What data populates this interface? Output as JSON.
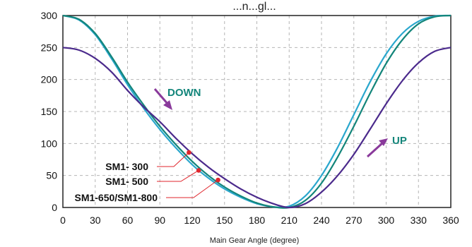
{
  "chart_data": {
    "type": "line",
    "title": "...n...gl...",
    "xlabel": "Main Gear Angle (degree)",
    "ylabel": "",
    "xlim": [
      0,
      360
    ],
    "ylim": [
      0,
      300
    ],
    "xticks": [
      0,
      30,
      60,
      90,
      120,
      150,
      180,
      210,
      240,
      270,
      300,
      330,
      360
    ],
    "yticks": [
      0,
      50,
      100,
      150,
      200,
      250,
      300
    ],
    "grid": true,
    "series": [
      {
        "name": "SM1- 300",
        "color": "#4b2a8c",
        "x": [
          0,
          15,
          30,
          45,
          60,
          75,
          90,
          105,
          120,
          135,
          150,
          165,
          180,
          195,
          210,
          225,
          240,
          255,
          270,
          285,
          300,
          315,
          330,
          345,
          360
        ],
        "y": [
          250,
          246,
          233,
          212,
          183,
          157,
          134,
          108,
          84,
          63,
          45,
          29,
          16,
          6,
          0,
          6,
          24,
          50,
          83,
          122,
          162,
          198,
          226,
          244,
          250
        ],
        "marker": {
          "x": 117,
          "y": 86
        }
      },
      {
        "name": "SM1- 500",
        "color": "#13857a",
        "x": [
          0,
          15,
          30,
          45,
          60,
          75,
          90,
          105,
          120,
          135,
          150,
          165,
          180,
          195,
          210,
          225,
          240,
          255,
          270,
          285,
          300,
          315,
          330,
          345,
          360
        ],
        "y": [
          300,
          294,
          272,
          236,
          196,
          160,
          127,
          98,
          72,
          50,
          32,
          18,
          7,
          1,
          0,
          11,
          38,
          79,
          127,
          178,
          225,
          262,
          287,
          298,
          300
        ],
        "marker": {
          "x": 126,
          "y": 58
        }
      },
      {
        "name": "SM1-650/SM1-800",
        "color": "#2aa7cd",
        "x": [
          0,
          15,
          30,
          45,
          60,
          75,
          90,
          105,
          120,
          135,
          150,
          165,
          180,
          195,
          210,
          225,
          240,
          255,
          270,
          285,
          300,
          315,
          330,
          345,
          360
        ],
        "y": [
          300,
          293,
          270,
          233,
          192,
          155,
          122,
          93,
          67,
          46,
          29,
          16,
          6,
          1,
          2,
          18,
          50,
          94,
          145,
          196,
          240,
          272,
          291,
          299,
          300
        ],
        "marker": {
          "x": 144,
          "y": 43
        }
      }
    ],
    "annotations": [
      {
        "text": "DOWN",
        "color": "#13857a"
      },
      {
        "text": "UP",
        "color": "#13857a"
      }
    ]
  }
}
